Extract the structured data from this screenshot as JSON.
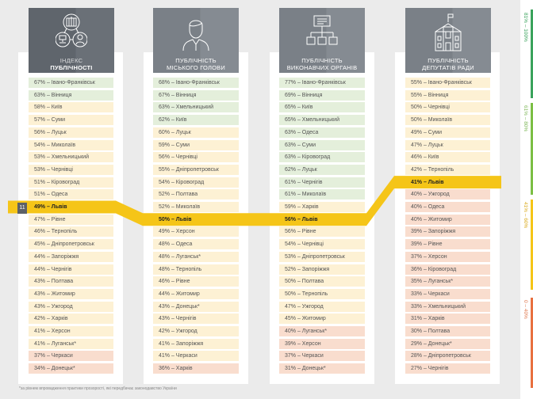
{
  "columns": [
    {
      "title": [
        "ІНДЕКС",
        "ПУБЛІЧНОСТІ"
      ],
      "icon": "network-people-icon",
      "rows": [
        [
          67,
          "Івано-Франківськ"
        ],
        [
          63,
          "Вінниця"
        ],
        [
          58,
          "Київ"
        ],
        [
          57,
          "Суми"
        ],
        [
          56,
          "Луцьк"
        ],
        [
          54,
          "Миколаїв"
        ],
        [
          53,
          "Хмельницький"
        ],
        [
          53,
          "Чернівці"
        ],
        [
          51,
          "Кіровоград"
        ],
        [
          51,
          "Одеса"
        ],
        [
          49,
          "Львів"
        ],
        [
          47,
          "Рівне"
        ],
        [
          46,
          "Тернопіль"
        ],
        [
          45,
          "Дніпропетровськ"
        ],
        [
          44,
          "Запоріжжя"
        ],
        [
          44,
          "Чернігів"
        ],
        [
          43,
          "Полтава"
        ],
        [
          43,
          "Житомир"
        ],
        [
          43,
          "Ужгород"
        ],
        [
          42,
          "Харків"
        ],
        [
          41,
          "Херсон"
        ],
        [
          41,
          "Луганськ*"
        ],
        [
          37,
          "Черкаси"
        ],
        [
          34,
          "Донецьк*"
        ]
      ]
    },
    {
      "title": [
        "ПУБЛІЧНІСТЬ",
        "МІСЬКОГО ГОЛОВИ"
      ],
      "icon": "mayor-person-icon",
      "rows": [
        [
          68,
          "Івано-Франківськ"
        ],
        [
          67,
          "Вінниця"
        ],
        [
          63,
          "Хмельницький"
        ],
        [
          62,
          "Київ"
        ],
        [
          60,
          "Луцьк"
        ],
        [
          59,
          "Суми"
        ],
        [
          56,
          "Чернівці"
        ],
        [
          55,
          "Дніпропетровськ"
        ],
        [
          54,
          "Кіровоград"
        ],
        [
          52,
          "Полтава"
        ],
        [
          52,
          "Миколаїв"
        ],
        [
          50,
          "Львів"
        ],
        [
          49,
          "Херсон"
        ],
        [
          48,
          "Одеса"
        ],
        [
          48,
          "Луганськ*"
        ],
        [
          48,
          "Тернопіль"
        ],
        [
          46,
          "Рівне"
        ],
        [
          44,
          "Житомир"
        ],
        [
          43,
          "Донецьк*"
        ],
        [
          43,
          "Чернігів"
        ],
        [
          42,
          "Ужгород"
        ],
        [
          41,
          "Запоріжжя"
        ],
        [
          41,
          "Черкаси"
        ],
        [
          36,
          "Харків"
        ]
      ]
    },
    {
      "title": [
        "ПУБЛІЧНІСТЬ",
        "ВИКОНАВЧИХ ОРГАНІВ"
      ],
      "icon": "org-chart-icon",
      "rows": [
        [
          77,
          "Івано-Франківськ"
        ],
        [
          69,
          "Вінниця"
        ],
        [
          65,
          "Київ"
        ],
        [
          65,
          "Хмельницький"
        ],
        [
          63,
          "Одеса"
        ],
        [
          63,
          "Суми"
        ],
        [
          63,
          "Кіровоград"
        ],
        [
          62,
          "Луцьк"
        ],
        [
          61,
          "Чернігів"
        ],
        [
          61,
          "Миколаїв"
        ],
        [
          59,
          "Харків"
        ],
        [
          56,
          "Львів"
        ],
        [
          56,
          "Рівне"
        ],
        [
          54,
          "Чернівці"
        ],
        [
          53,
          "Дніпропетровськ"
        ],
        [
          52,
          "Запоріжжя"
        ],
        [
          50,
          "Полтава"
        ],
        [
          50,
          "Тернопіль"
        ],
        [
          47,
          "Ужгород"
        ],
        [
          45,
          "Житомир"
        ],
        [
          40,
          "Луганськ*"
        ],
        [
          39,
          "Херсон"
        ],
        [
          37,
          "Черкаси"
        ],
        [
          31,
          "Донецьк*"
        ]
      ]
    },
    {
      "title": [
        "ПУБЛІЧНІСТЬ",
        "ДЕПУТАТІВ РАДИ"
      ],
      "icon": "council-building-icon",
      "rows": [
        [
          55,
          "Івано-Франківськ"
        ],
        [
          55,
          "Вінниця"
        ],
        [
          50,
          "Чернівці"
        ],
        [
          50,
          "Миколаїв"
        ],
        [
          49,
          "Суми"
        ],
        [
          47,
          "Луцьк"
        ],
        [
          46,
          "Київ"
        ],
        [
          42,
          "Тернопіль"
        ],
        [
          41,
          "Львів"
        ],
        [
          40,
          "Ужгород"
        ],
        [
          40,
          "Одеса"
        ],
        [
          40,
          "Житомир"
        ],
        [
          39,
          "Запоріжжя"
        ],
        [
          39,
          "Рівне"
        ],
        [
          37,
          "Херсон"
        ],
        [
          36,
          "Кіровоград"
        ],
        [
          35,
          "Луганськ*"
        ],
        [
          33,
          "Черкаси"
        ],
        [
          33,
          "Хмельницький"
        ],
        [
          31,
          "Харків"
        ],
        [
          30,
          "Полтава"
        ],
        [
          29,
          "Донецьк*"
        ],
        [
          28,
          "Дніпропетровськ"
        ],
        [
          27,
          "Чернігів"
        ]
      ]
    }
  ],
  "highlight": {
    "city": "Львів",
    "rank": "11",
    "color": "#f5c518"
  },
  "legend": [
    {
      "label": "81% – 100%",
      "color": "#3aa35c",
      "text_color": "#3aa35c"
    },
    {
      "label": "61% – 80%",
      "color": "#7cbf45",
      "text_color": "#8cc46a"
    },
    {
      "label": "41% – 60%",
      "color": "#f5c518",
      "text_color": "#f0c84a"
    },
    {
      "label": "0 – 40%",
      "color": "#e8703f",
      "text_color": "#e8906a"
    }
  ],
  "footnote": "*за рівнем впровадження практики прозорості, які передбачає законодавство України"
}
